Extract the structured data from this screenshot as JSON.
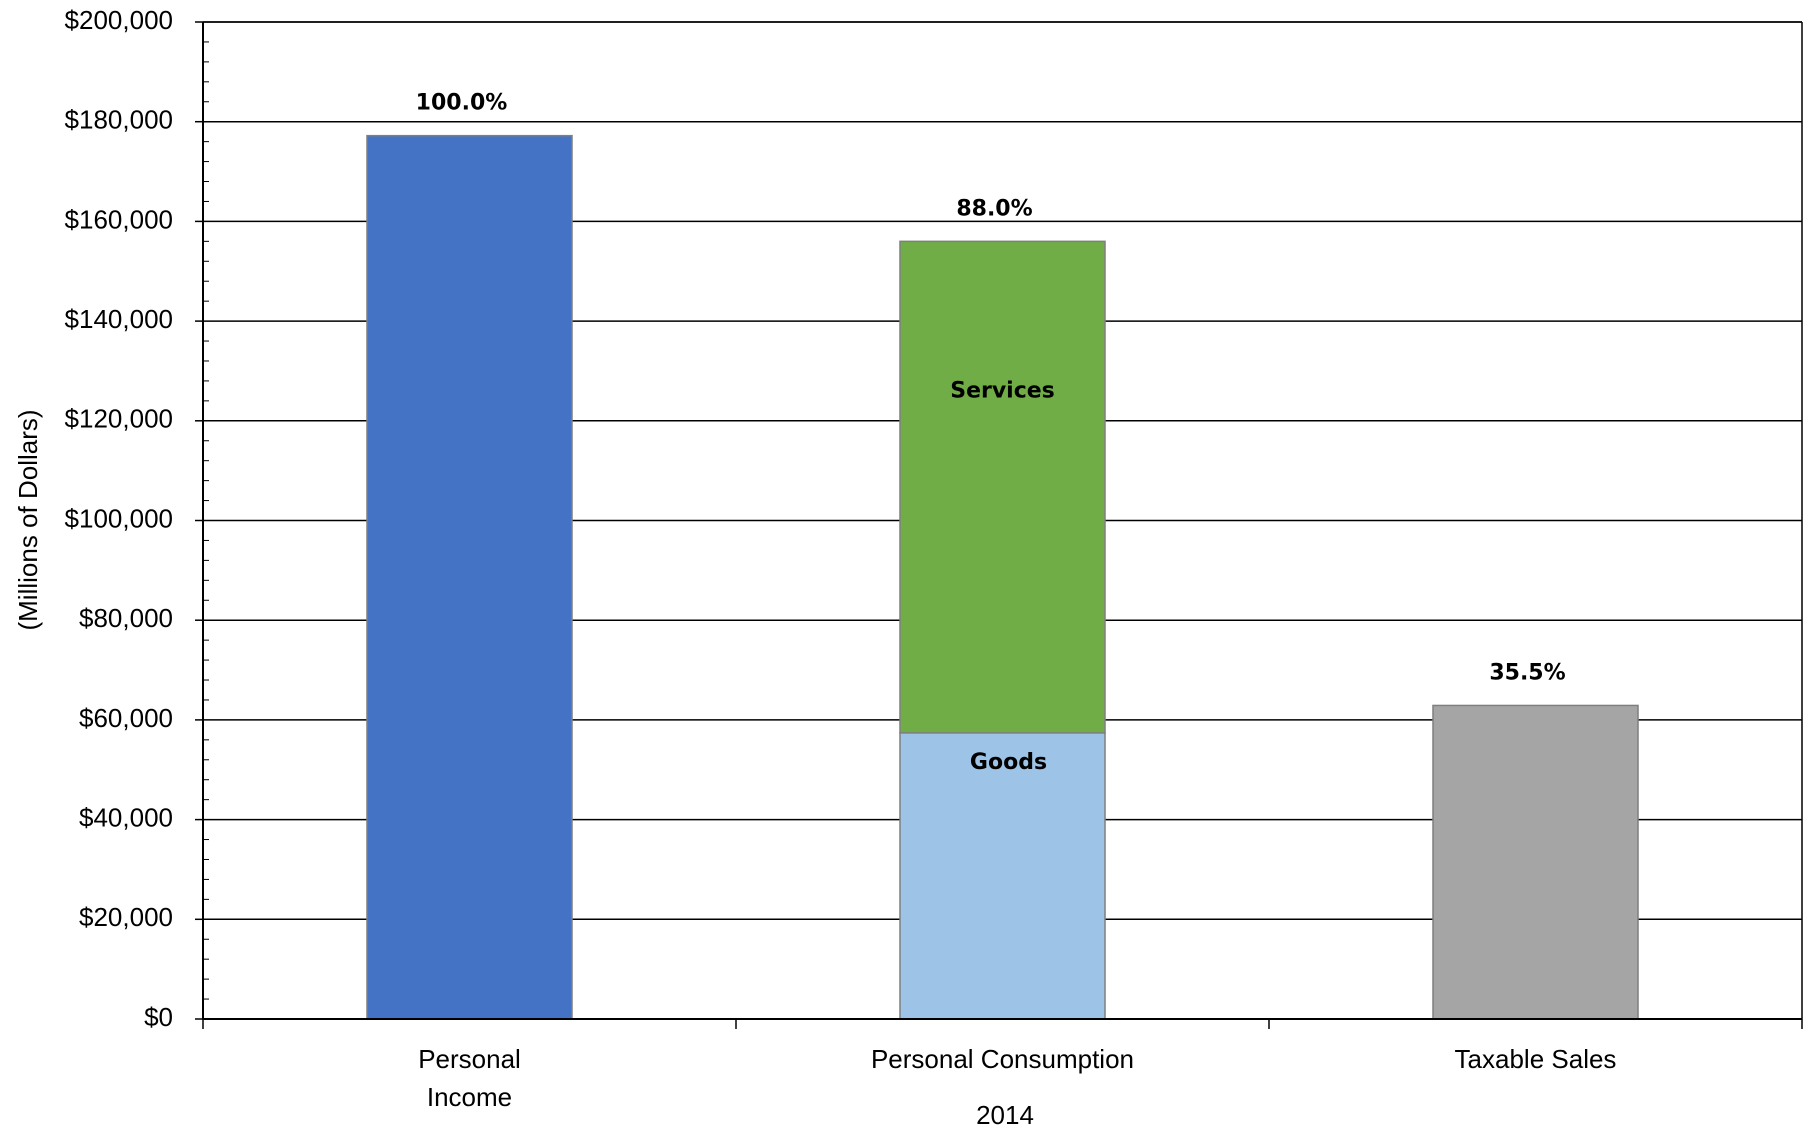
{
  "chart_data": {
    "type": "bar",
    "stacked": true,
    "categories": [
      "Personal Income",
      "Personal Consumption",
      "Taxable Sales"
    ],
    "category_label_lines": [
      [
        "Personal",
        "Income"
      ],
      [
        "Personal Consumption"
      ],
      [
        "Taxable Sales"
      ]
    ],
    "xlabel": "2014",
    "ylabel": "(Millions of Dollars)",
    "ylim": [
      0,
      200000
    ],
    "y_major_step": 20000,
    "y_minor_step": 4000,
    "y_tick_labels": [
      "$0",
      "$20,000",
      "$40,000",
      "$60,000",
      "$80,000",
      "$100,000",
      "$120,000",
      "$140,000",
      "$160,000",
      "$180,000",
      "$200,000"
    ],
    "grid": true,
    "legend": "none",
    "segments": [
      {
        "category": 0,
        "name": "",
        "from": 0,
        "to": 177200,
        "color": "#4472C4"
      },
      {
        "category": 1,
        "name": "Goods",
        "from": 0,
        "to": 57400,
        "color": "#9DC3E6"
      },
      {
        "category": 1,
        "name": "Services",
        "from": 57400,
        "to": 156000,
        "color": "#70AD47"
      },
      {
        "category": 2,
        "name": "",
        "from": 0,
        "to": 62900,
        "color": "#A5A5A5"
      }
    ],
    "totals": [
      177200,
      156000,
      62900
    ],
    "data_labels": [
      "100.0%",
      "88.0%",
      "35.5%"
    ]
  }
}
